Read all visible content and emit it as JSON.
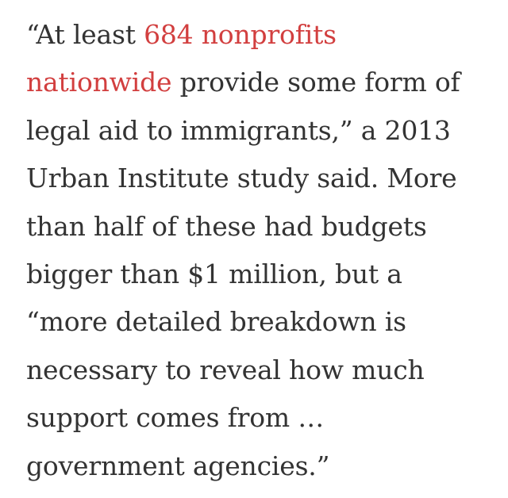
{
  "article": {
    "paragraph": {
      "lines": [
        {
          "before": "“At least ",
          "link": "684 nonprofits"
        },
        {
          "link": "nationwide",
          "after": " provide some form of"
        },
        {
          "text": "legal aid to immigrants,” a 2013"
        },
        {
          "text": "Urban Institute study said. More"
        },
        {
          "text": "than half of these had budgets"
        },
        {
          "text": "bigger than $1 million, but a"
        },
        {
          "text": "“more detailed breakdown is"
        },
        {
          "text": "necessary to reveal how much"
        },
        {
          "text": "support comes from …"
        },
        {
          "text": "government agencies.”"
        }
      ]
    },
    "colors": {
      "text": "#333333",
      "link": "#d23f3f"
    }
  }
}
